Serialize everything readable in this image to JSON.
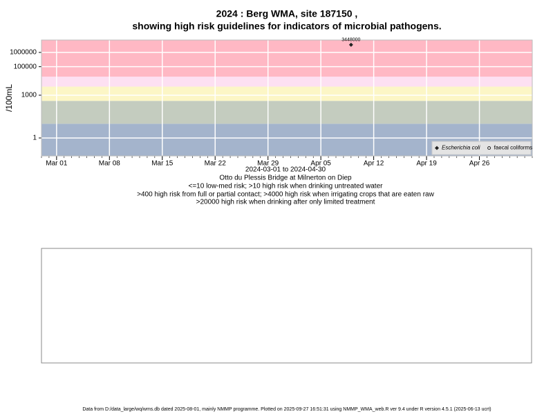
{
  "chart_data": {
    "type": "scatter",
    "title": [
      "2024 : Berg WMA, site 187150 ,",
      "showing high risk guidelines for indicators of microbial pathogens."
    ],
    "y_label": "/100mL",
    "x_label": "2024-03-01 to 2024-04-30",
    "subtitle": [
      "Otto du Plessis Bridge at Milnerton on Diep",
      "<=10 low-med risk; >10 high risk when drinking untreated water",
      ">400 high risk from full or partial contact; >4000 high risk when irrigating crops that are eaten raw",
      ">20000 high risk when drinking after only limited treatment"
    ],
    "footer": "Data from D:/data_large/wq/wms.db dated 2025-08-01, mainly NMMP programme. Plotted on 2025-09-27 16:51:31 using NMMP_WMA_web.R ver 9.4 under R version 4.5.1 (2025-06-13 ucrt)",
    "log_y": true,
    "grid": true,
    "legend": "bottom-right",
    "xlim": [
      "2024-02-28",
      "2024-05-03"
    ],
    "ylim": [
      0.055,
      7400000
    ],
    "xticks": [
      {
        "value": "2024-03-01",
        "label": "Mar 01"
      },
      {
        "value": "2024-03-08",
        "label": "Mar 08"
      },
      {
        "value": "2024-03-15",
        "label": "Mar 15"
      },
      {
        "value": "2024-03-22",
        "label": "Mar 22"
      },
      {
        "value": "2024-03-29",
        "label": "Mar 29"
      },
      {
        "value": "2024-04-05",
        "label": "Apr 05"
      },
      {
        "value": "2024-04-12",
        "label": "Apr 12"
      },
      {
        "value": "2024-04-19",
        "label": "Apr 19"
      },
      {
        "value": "2024-04-26",
        "label": "Apr 26"
      }
    ],
    "yticks": [
      1,
      1000,
      100000,
      1000000
    ],
    "bands": [
      {
        "upper": 10,
        "color": "#a4b4cc"
      },
      {
        "upper": 400,
        "color": "#c4ccbf"
      },
      {
        "upper": 4000,
        "color": "#fcf6c6"
      },
      {
        "upper": 20000,
        "color": "#fde0f2"
      },
      {
        "upper": 7400000,
        "color": "#ffb8c4"
      }
    ],
    "series": [
      {
        "name": "Escherichia coli",
        "color": "#222222",
        "marker": "diamond",
        "x": [
          "2024-04-09"
        ],
        "values": [
          3448000
        ]
      },
      {
        "name": "faecal coliforms",
        "color": "#222222",
        "marker": "circle",
        "x": [],
        "values": []
      }
    ]
  }
}
